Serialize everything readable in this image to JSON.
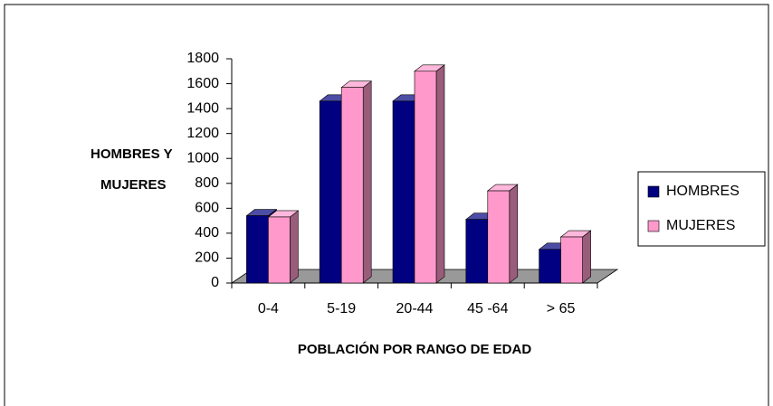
{
  "chart_data": {
    "type": "bar3d",
    "ylabel": [
      "HOMBRES Y",
      "MUJERES"
    ],
    "xlabel": "POBLACIÓN POR RANGO DE EDAD",
    "categories": [
      "0-4",
      "5-19",
      "20-44",
      "45 -64",
      "> 65"
    ],
    "series": [
      {
        "name": "HOMBRES",
        "color": "#000080",
        "values": [
          540,
          1460,
          1460,
          510,
          270
        ]
      },
      {
        "name": "MUJERES",
        "color": "#ff99cc",
        "values": [
          530,
          1570,
          1700,
          740,
          370
        ]
      }
    ],
    "ylim": [
      0,
      1800
    ],
    "yticks": [
      0,
      200,
      400,
      600,
      800,
      1000,
      1200,
      1400,
      1600,
      1800
    ],
    "legend": "right"
  }
}
